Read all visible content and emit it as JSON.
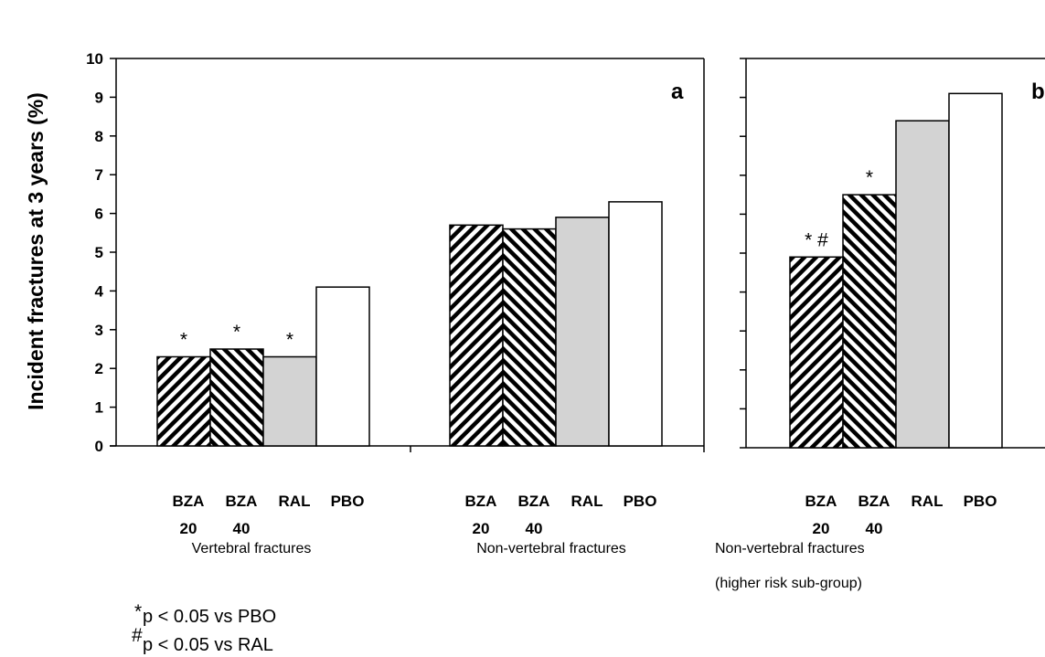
{
  "chart_data": {
    "type": "bar",
    "ylabel": "Incident fractures at 3 years (%)",
    "ylim": [
      0,
      10
    ],
    "yticks": [
      "0",
      "1",
      "2",
      "3",
      "4",
      "5",
      "6",
      "7",
      "8",
      "9",
      "10"
    ],
    "categories": [
      {
        "line1": "BZA",
        "line2": "20",
        "pattern": "hatch-right"
      },
      {
        "line1": "BZA",
        "line2": "40",
        "pattern": "hatch-left"
      },
      {
        "line1": "RAL",
        "line2": "",
        "pattern": "gray"
      },
      {
        "line1": "PBO",
        "line2": "",
        "pattern": "white"
      }
    ],
    "groups": [
      {
        "label": "Vertebral fractures",
        "label2": "",
        "panel": "a",
        "values": [
          2.3,
          2.5,
          2.3,
          4.1
        ],
        "marks": [
          "*",
          "*",
          "*",
          ""
        ]
      },
      {
        "label": "Non-vertebral fractures",
        "label2": "",
        "panel": "a",
        "values": [
          5.7,
          5.6,
          5.9,
          6.3
        ],
        "marks": [
          "",
          "",
          "",
          ""
        ]
      },
      {
        "label": "Non-vertebral fractures",
        "label2": "(higher risk sub-group)",
        "panel": "b",
        "values": [
          4.9,
          6.5,
          8.4,
          9.1
        ],
        "marks": [
          "* #",
          "*",
          "",
          ""
        ]
      }
    ],
    "panels": [
      "a",
      "b"
    ],
    "legend": [
      {
        "symbol": "*",
        "text": "p < 0.05 vs PBO"
      },
      {
        "symbol": "#",
        "text": "p < 0.05 vs RAL"
      }
    ]
  }
}
